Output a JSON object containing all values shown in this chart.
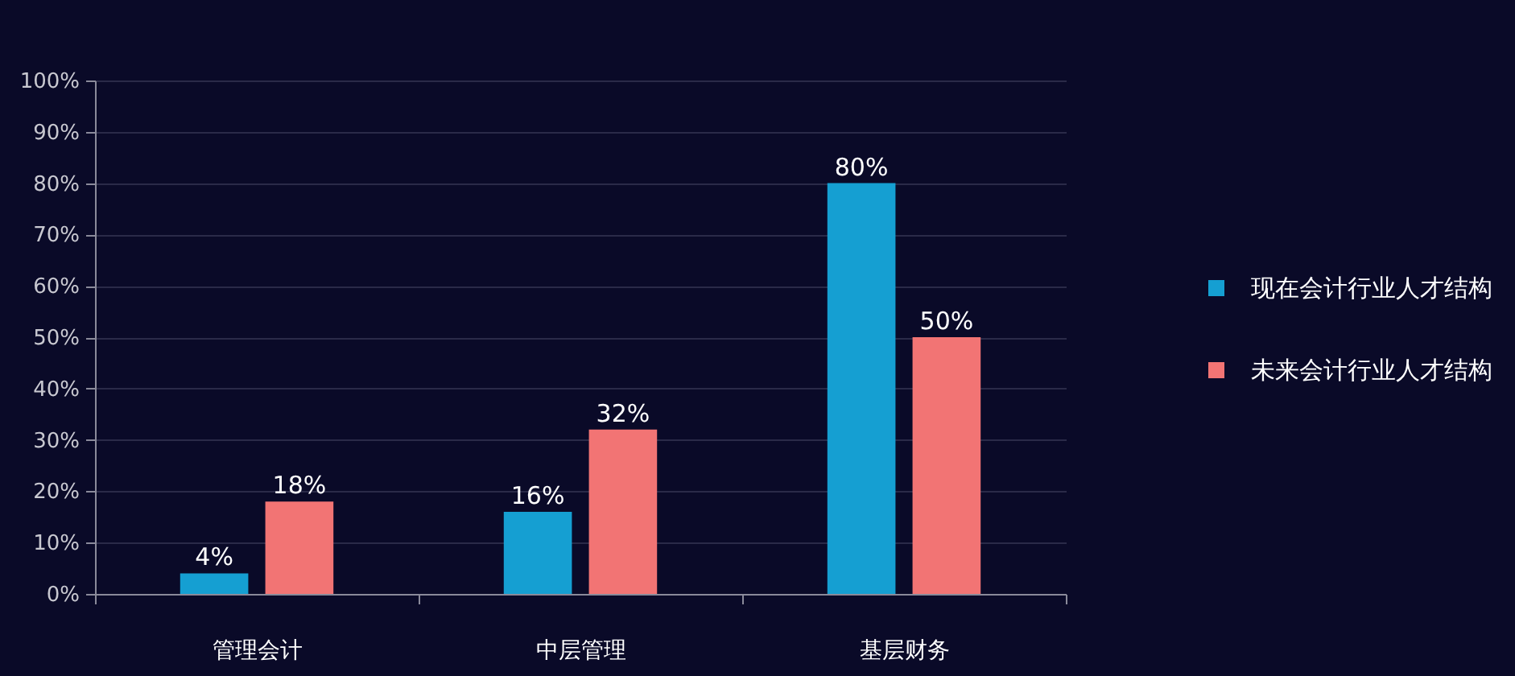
{
  "chart_data": {
    "type": "bar",
    "categories": [
      "管理会计",
      "中层管理",
      "基层财务"
    ],
    "series": [
      {
        "name": "现在会计行业人才结构",
        "color": "#159fd2",
        "values": [
          4,
          16,
          80
        ],
        "value_labels": [
          "4%",
          "16%",
          "80%"
        ]
      },
      {
        "name": "未来会计行业人才结构",
        "color": "#f27474",
        "values": [
          18,
          32,
          50
        ],
        "value_labels": [
          "18%",
          "32%",
          "50%"
        ]
      }
    ],
    "ylim": [
      0,
      100
    ],
    "yticks": [
      {
        "value": 0,
        "label": "0%"
      },
      {
        "value": 10,
        "label": "10%"
      },
      {
        "value": 20,
        "label": "20%"
      },
      {
        "value": 30,
        "label": "30%"
      },
      {
        "value": 40,
        "label": "40%"
      },
      {
        "value": 50,
        "label": "50%"
      },
      {
        "value": 60,
        "label": "60%"
      },
      {
        "value": 70,
        "label": "70%"
      },
      {
        "value": 80,
        "label": "80%"
      },
      {
        "value": 90,
        "label": "90%"
      },
      {
        "value": 100,
        "label": "100%"
      }
    ],
    "grid": "y",
    "legend": "right"
  }
}
